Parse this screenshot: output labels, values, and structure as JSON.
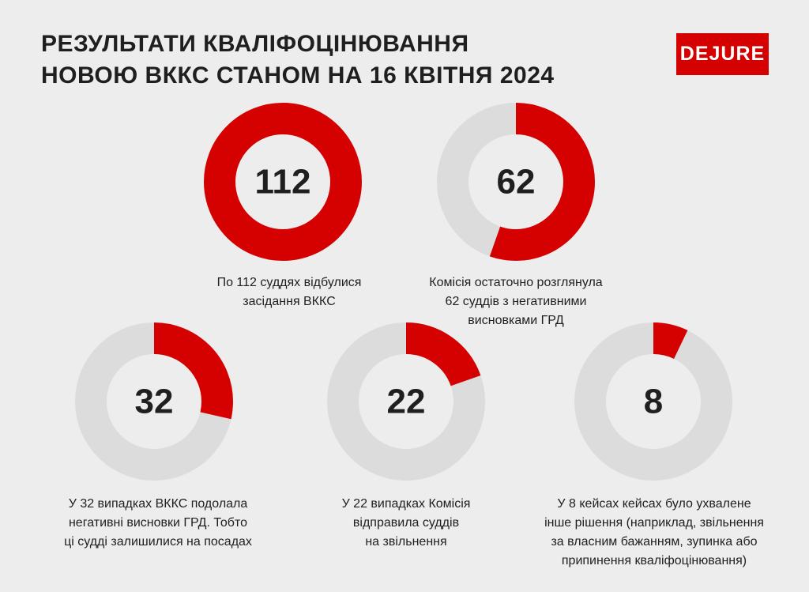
{
  "header": {
    "title_lines": [
      "Результати кваліфоцінювання",
      "новою ВККС станом на 16 квітня 2024"
    ],
    "logo": "DEJURE"
  },
  "colors": {
    "accent": "#d50000",
    "track": "#dcdcdc",
    "background": "#ededed",
    "text": "#1f1f1f"
  },
  "chart_data": [
    {
      "type": "pie",
      "label": "112",
      "value": 112,
      "total": 112,
      "caption_lines": [
        "По 112 суддях відбулися",
        "засідання ВККС"
      ]
    },
    {
      "type": "pie",
      "label": "62",
      "value": 62,
      "total": 112,
      "caption_lines": [
        "Комісія остаточно розглянула",
        "62 суддів з негативними",
        "висновками ГРД"
      ]
    },
    {
      "type": "pie",
      "label": "32",
      "value": 32,
      "total": 112,
      "caption_lines": [
        "У 32 випадках ВККС подолала",
        "негативні висновки ГРД. Тобто",
        "ці судді залишилися на посадах"
      ]
    },
    {
      "type": "pie",
      "label": "22",
      "value": 22,
      "total": 112,
      "caption_lines": [
        "У 22 випадках Комісія",
        "відправила суддів",
        "на звільнення"
      ]
    },
    {
      "type": "pie",
      "label": "8",
      "value": 8,
      "total": 112,
      "caption_lines": [
        "У 8 кейсах кейсах було ухвалене",
        "інше рішення (наприклад, звільнення",
        "за власним бажанням, зупинка або",
        "припинення кваліфоцінювання)"
      ]
    }
  ]
}
